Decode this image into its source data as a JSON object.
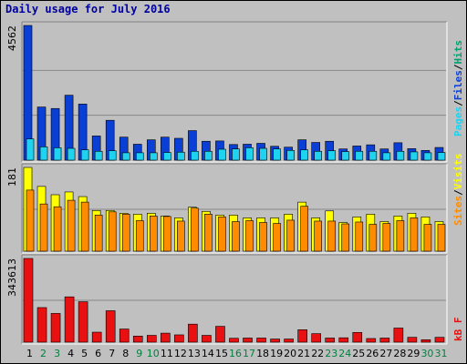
{
  "title": "Daily usage for July 2016",
  "colors": {
    "background": "#c0c0c0",
    "pages": "#0a3fd6",
    "files": "#1ed2f0",
    "hits": "#00a070",
    "sites": "#ff8c00",
    "visits": "#ffff00",
    "kbytes": "#e81010",
    "weekend_label": "#008040",
    "weekday_label": "#000000",
    "grid": "#888888"
  },
  "chart_data": [
    {
      "type": "bar",
      "panel": "top",
      "y_tick_label": "4562",
      "ylim": [
        0,
        4562
      ],
      "grid": true,
      "legend": {
        "placement": "right",
        "labels": [
          "Pages",
          "/",
          "Files",
          "/",
          "Hits"
        ],
        "colors": [
          "#1ed2f0",
          "#000000",
          "#0a3fd6",
          "#000000",
          "#00a070"
        ]
      },
      "categories": [
        "1",
        "2",
        "3",
        "4",
        "5",
        "6",
        "7",
        "8",
        "9",
        "10",
        "11",
        "12",
        "13",
        "14",
        "15",
        "16",
        "17",
        "18",
        "19",
        "20",
        "21",
        "22",
        "23",
        "24",
        "25",
        "26",
        "27",
        "28",
        "29",
        "30",
        "31"
      ],
      "series": [
        {
          "name": "Pages",
          "values": [
            4562,
            1800,
            1750,
            2200,
            1900,
            820,
            1350,
            780,
            540,
            690,
            780,
            740,
            1000,
            640,
            650,
            530,
            540,
            570,
            470,
            440,
            690,
            600,
            640,
            380,
            480,
            520,
            380,
            590,
            390,
            330,
            430
          ]
        },
        {
          "name": "Files",
          "values": [
            720,
            450,
            420,
            400,
            350,
            300,
            320,
            250,
            250,
            250,
            260,
            270,
            300,
            300,
            370,
            380,
            420,
            400,
            380,
            330,
            350,
            300,
            320,
            290,
            300,
            300,
            250,
            300,
            280,
            250,
            260
          ]
        }
      ]
    },
    {
      "type": "bar",
      "panel": "middle",
      "y_tick_label": "181",
      "ylim": [
        0,
        181
      ],
      "grid": true,
      "legend": {
        "placement": "right",
        "labels": [
          "Sites",
          "/",
          "Visits"
        ],
        "colors": [
          "#ff8c00",
          "#000000",
          "#ffff00"
        ]
      },
      "categories": [
        "1",
        "2",
        "3",
        "4",
        "5",
        "6",
        "7",
        "8",
        "9",
        "10",
        "11",
        "12",
        "13",
        "14",
        "15",
        "16",
        "17",
        "18",
        "19",
        "20",
        "21",
        "22",
        "23",
        "24",
        "25",
        "26",
        "27",
        "28",
        "29",
        "30",
        "31"
      ],
      "series": [
        {
          "name": "Visits",
          "values": [
            181,
            140,
            122,
            128,
            118,
            88,
            88,
            82,
            80,
            82,
            76,
            72,
            95,
            86,
            78,
            78,
            72,
            72,
            72,
            80,
            106,
            72,
            87,
            62,
            74,
            80,
            64,
            76,
            82,
            74,
            64
          ]
        },
        {
          "name": "Sites",
          "values": [
            132,
            102,
            96,
            110,
            106,
            78,
            85,
            80,
            66,
            76,
            75,
            65,
            93,
            80,
            74,
            64,
            66,
            62,
            60,
            67,
            97,
            65,
            65,
            59,
            63,
            58,
            60,
            66,
            72,
            58,
            58
          ]
        }
      ]
    },
    {
      "type": "bar",
      "panel": "bottom",
      "y_tick_label": "343613",
      "ylim": [
        0,
        343613
      ],
      "grid": true,
      "legend": {
        "placement": "right",
        "labels": [
          "kB F"
        ],
        "colors": [
          "#e81010"
        ]
      },
      "categories": [
        "1",
        "2",
        "3",
        "4",
        "5",
        "6",
        "7",
        "8",
        "9",
        "10",
        "11",
        "12",
        "13",
        "14",
        "15",
        "16",
        "17",
        "18",
        "19",
        "20",
        "21",
        "22",
        "23",
        "24",
        "25",
        "26",
        "27",
        "28",
        "29",
        "30",
        "31"
      ],
      "weekend_days": [
        "2",
        "3",
        "9",
        "10",
        "16",
        "17",
        "23",
        "24",
        "30",
        "31"
      ],
      "series": [
        {
          "name": "kB F",
          "values": [
            343613,
            142000,
            118000,
            186000,
            166000,
            41000,
            129000,
            54000,
            25000,
            28000,
            37000,
            30000,
            74000,
            28000,
            65000,
            16000,
            17000,
            17000,
            13000,
            13000,
            51000,
            35000,
            17000,
            18000,
            40000,
            15000,
            17000,
            58000,
            20000,
            10000,
            20000
          ]
        }
      ]
    }
  ]
}
